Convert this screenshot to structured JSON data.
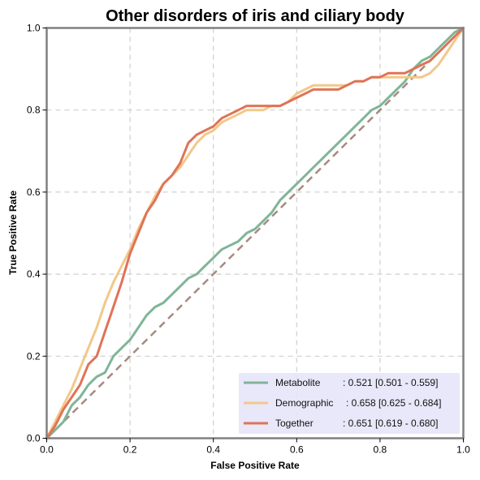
{
  "chart_data": {
    "type": "line",
    "title": "Other disorders of iris and ciliary body",
    "xlabel": "False Positive Rate",
    "ylabel": "True Positive Rate",
    "xlim": [
      0,
      1
    ],
    "ylim": [
      0,
      1
    ],
    "x_ticks": [
      "0.0",
      "0.2",
      "0.4",
      "0.6",
      "0.8",
      "1.0"
    ],
    "y_ticks": [
      "0.0",
      "0.2",
      "0.4",
      "0.6",
      "0.8",
      "1.0"
    ],
    "grid": true,
    "legend_position": "lower-right",
    "diagonal_color": "#a68a80",
    "series": [
      {
        "name": "Metabolite",
        "legend_label": "Metabolite",
        "legend_value": ": 0.521 [0.501 - 0.559]",
        "color": "#7fb598",
        "x": [
          0,
          0.02,
          0.04,
          0.06,
          0.08,
          0.1,
          0.12,
          0.14,
          0.16,
          0.18,
          0.2,
          0.22,
          0.24,
          0.26,
          0.28,
          0.3,
          0.32,
          0.34,
          0.36,
          0.38,
          0.4,
          0.42,
          0.44,
          0.46,
          0.48,
          0.5,
          0.52,
          0.54,
          0.56,
          0.58,
          0.6,
          0.62,
          0.64,
          0.66,
          0.68,
          0.7,
          0.72,
          0.74,
          0.76,
          0.78,
          0.8,
          0.82,
          0.84,
          0.86,
          0.88,
          0.9,
          0.92,
          0.94,
          0.96,
          0.98,
          1.0
        ],
        "y": [
          0,
          0.02,
          0.04,
          0.08,
          0.1,
          0.13,
          0.15,
          0.16,
          0.2,
          0.22,
          0.24,
          0.27,
          0.3,
          0.32,
          0.33,
          0.35,
          0.37,
          0.39,
          0.4,
          0.42,
          0.44,
          0.46,
          0.47,
          0.48,
          0.5,
          0.51,
          0.53,
          0.55,
          0.58,
          0.6,
          0.62,
          0.64,
          0.66,
          0.68,
          0.7,
          0.72,
          0.74,
          0.76,
          0.78,
          0.8,
          0.81,
          0.83,
          0.85,
          0.87,
          0.9,
          0.92,
          0.93,
          0.95,
          0.97,
          0.99,
          1.0
        ]
      },
      {
        "name": "Demographic",
        "legend_label": "Demographic",
        "legend_value": ": 0.658 [0.625 - 0.684]",
        "color": "#f2c88a",
        "x": [
          0,
          0.02,
          0.04,
          0.06,
          0.08,
          0.1,
          0.12,
          0.14,
          0.16,
          0.18,
          0.2,
          0.22,
          0.24,
          0.26,
          0.28,
          0.3,
          0.32,
          0.34,
          0.36,
          0.38,
          0.4,
          0.42,
          0.44,
          0.46,
          0.48,
          0.5,
          0.52,
          0.54,
          0.56,
          0.58,
          0.6,
          0.62,
          0.64,
          0.66,
          0.68,
          0.7,
          0.72,
          0.74,
          0.76,
          0.78,
          0.8,
          0.82,
          0.84,
          0.86,
          0.88,
          0.9,
          0.92,
          0.94,
          0.96,
          0.98,
          1.0
        ],
        "y": [
          0,
          0.04,
          0.08,
          0.12,
          0.17,
          0.22,
          0.27,
          0.33,
          0.38,
          0.42,
          0.46,
          0.51,
          0.55,
          0.59,
          0.62,
          0.64,
          0.66,
          0.69,
          0.72,
          0.74,
          0.75,
          0.77,
          0.78,
          0.79,
          0.8,
          0.8,
          0.8,
          0.81,
          0.81,
          0.82,
          0.84,
          0.85,
          0.86,
          0.86,
          0.86,
          0.86,
          0.86,
          0.87,
          0.87,
          0.88,
          0.88,
          0.88,
          0.88,
          0.88,
          0.88,
          0.88,
          0.89,
          0.91,
          0.94,
          0.97,
          1.0
        ]
      },
      {
        "name": "Together",
        "legend_label": "Together",
        "legend_value": ": 0.651 [0.619 - 0.680]",
        "color": "#e07357",
        "x": [
          0,
          0.02,
          0.04,
          0.06,
          0.08,
          0.1,
          0.12,
          0.14,
          0.16,
          0.18,
          0.2,
          0.22,
          0.24,
          0.26,
          0.28,
          0.3,
          0.32,
          0.34,
          0.36,
          0.38,
          0.4,
          0.42,
          0.44,
          0.46,
          0.48,
          0.5,
          0.52,
          0.54,
          0.56,
          0.58,
          0.6,
          0.62,
          0.64,
          0.66,
          0.68,
          0.7,
          0.72,
          0.74,
          0.76,
          0.78,
          0.8,
          0.82,
          0.84,
          0.86,
          0.88,
          0.9,
          0.92,
          0.94,
          0.96,
          0.98,
          1.0
        ],
        "y": [
          0,
          0.03,
          0.07,
          0.1,
          0.13,
          0.18,
          0.2,
          0.26,
          0.32,
          0.38,
          0.45,
          0.5,
          0.55,
          0.58,
          0.62,
          0.64,
          0.67,
          0.72,
          0.74,
          0.75,
          0.76,
          0.78,
          0.79,
          0.8,
          0.81,
          0.81,
          0.81,
          0.81,
          0.81,
          0.82,
          0.83,
          0.84,
          0.85,
          0.85,
          0.85,
          0.85,
          0.86,
          0.87,
          0.87,
          0.88,
          0.88,
          0.89,
          0.89,
          0.89,
          0.9,
          0.91,
          0.92,
          0.94,
          0.96,
          0.98,
          1.0
        ]
      }
    ]
  }
}
